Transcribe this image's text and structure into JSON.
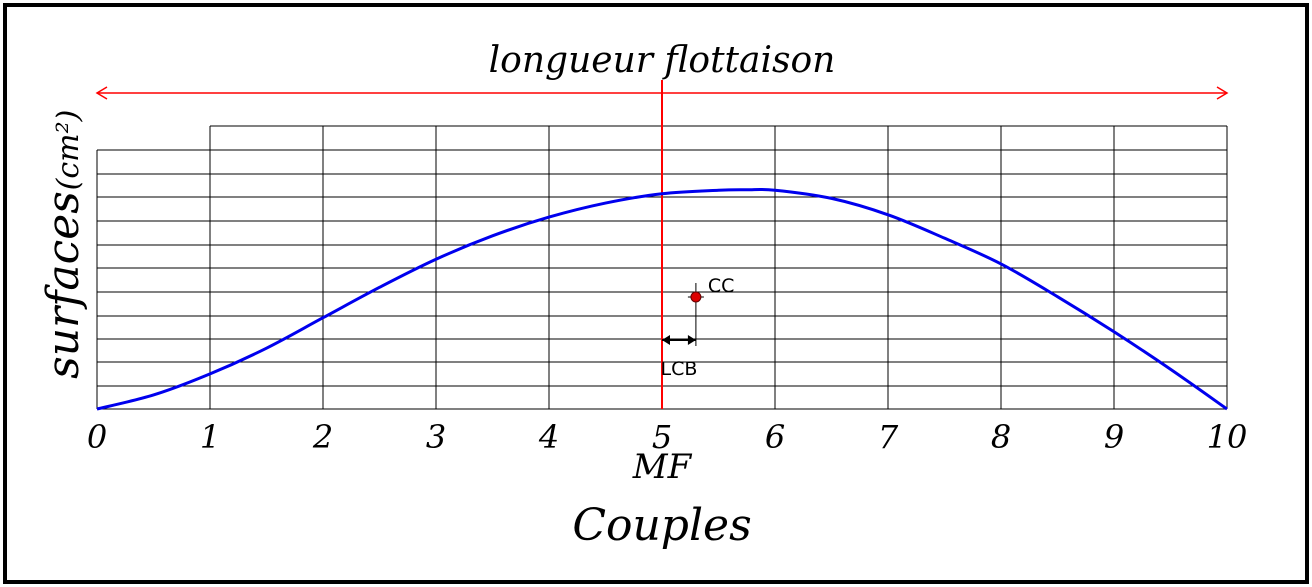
{
  "chart_data": {
    "type": "line",
    "title": "longueur flottaison",
    "xlabel": "Couples",
    "ylabel": "surfaces",
    "ylabel_unit": "(cm²)",
    "midship_label": "MF",
    "xlim": [
      0,
      10
    ],
    "ylim": [
      0,
      10
    ],
    "x_ticks": [
      "0",
      "1",
      "2",
      "3",
      "4",
      "5",
      "6",
      "7",
      "8",
      "9",
      "10"
    ],
    "grid": true,
    "series": [
      {
        "color": "#0000ee",
        "x": [
          0,
          0.5,
          1,
          1.5,
          2,
          2.5,
          3,
          3.5,
          4,
          4.5,
          5,
          5.5,
          5.75,
          6,
          6.5,
          7,
          7.5,
          8,
          8.5,
          9,
          9.5,
          10
        ],
        "y": [
          0,
          0.6,
          1.5,
          2.6,
          3.9,
          5.2,
          6.4,
          7.4,
          8.2,
          8.8,
          9.2,
          9.35,
          9.37,
          9.35,
          9.0,
          8.3,
          7.3,
          6.2,
          4.8,
          3.3,
          1.7,
          0
        ]
      }
    ],
    "waterline_length": {
      "from": 0,
      "to": 10,
      "color": "#ff0000"
    },
    "midship": {
      "x": 5,
      "color": "#ff0000"
    },
    "cc_point": {
      "label": "CC",
      "x": 5.3,
      "y": 4.6,
      "color": "#dd0000"
    },
    "lcb_marker": {
      "label": "LCB",
      "from": 5,
      "to": 5.3
    }
  }
}
